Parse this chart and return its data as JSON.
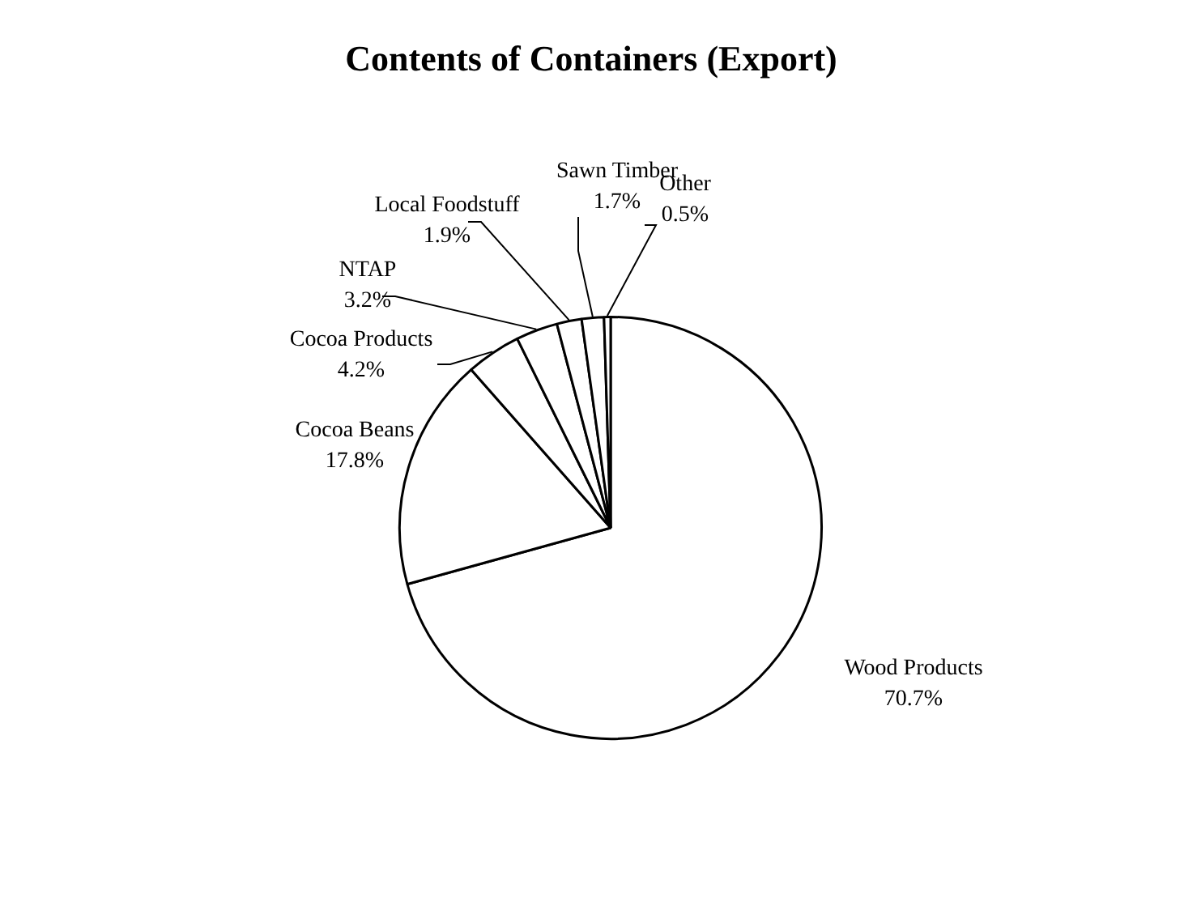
{
  "chart_data": {
    "type": "pie",
    "title": "Contents of Containers (Export)",
    "categories": [
      "Wood Products",
      "Cocoa Beans",
      "Cocoa Products",
      "NTAP",
      "Local Foodstuff",
      "Sawn Timber",
      "Other"
    ],
    "values": [
      70.7,
      17.8,
      4.2,
      3.2,
      1.9,
      1.7,
      0.5
    ],
    "colors": [
      "#ffffff",
      "#ffffff",
      "#ffffff",
      "#ffffff",
      "#ffffff",
      "#ffffff",
      "#ffffff"
    ],
    "value_labels": [
      "70.7%",
      "17.8%",
      "4.2%",
      "3.2%",
      "1.9%",
      "1.7%",
      "0.5%"
    ],
    "legend": false
  }
}
